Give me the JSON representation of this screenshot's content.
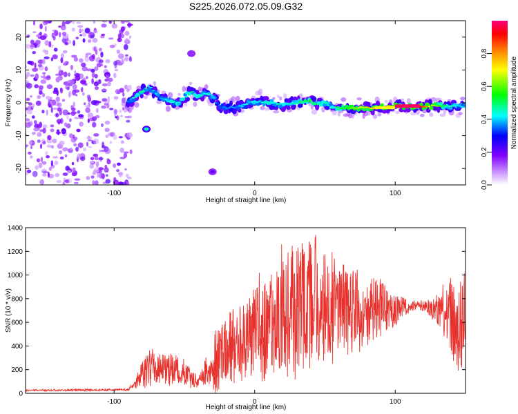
{
  "title": "S225.2026.072.05.09.G32",
  "chart_data": [
    {
      "type": "heatmap",
      "name": "spectrogram",
      "xlabel": "Height of straight line (km)",
      "ylabel": "Frequency (Hz)",
      "xlim": [
        -163,
        150
      ],
      "ylim": [
        -25,
        25
      ],
      "xticks": [
        -100,
        0,
        100
      ],
      "yticks": [
        -20,
        -10,
        0,
        10,
        20
      ],
      "colorbar": {
        "label": "Normalized spectral amplitude",
        "ticks": [
          0.0,
          0.2,
          0.4,
          0.6,
          0.8
        ],
        "range": [
          0,
          1
        ],
        "stops": [
          "#ffffff",
          "#8000ff",
          "#0000ff",
          "#00ffff",
          "#00ff00",
          "#ffff00",
          "#ff8000",
          "#ff0000",
          "#ff0080"
        ]
      },
      "noise_region_x": [
        -163,
        -90
      ],
      "ridge": {
        "x": [
          -90,
          -85,
          -80,
          -75,
          -70,
          -65,
          -60,
          -55,
          -50,
          -45,
          -40,
          -35,
          -30,
          -25,
          -20,
          -10,
          0,
          10,
          20,
          30,
          40,
          45,
          50,
          55,
          60,
          70,
          80,
          90,
          100,
          110,
          120,
          130,
          140,
          150
        ],
        "freq": [
          0.5,
          1.5,
          3.5,
          5,
          2.5,
          1,
          0.5,
          0,
          1.5,
          3.5,
          1.5,
          3,
          2,
          -1,
          -1.5,
          -1,
          0.5,
          0,
          -0.5,
          0,
          0.5,
          -0.5,
          0,
          -1.5,
          -1.5,
          -1.5,
          -1.5,
          -1.5,
          -1,
          -1,
          -1,
          -1,
          -1,
          -1
        ],
        "amplitude": [
          0.35,
          0.45,
          0.5,
          0.45,
          0.4,
          0.4,
          0.45,
          0.45,
          0.45,
          0.5,
          0.45,
          0.45,
          0.4,
          0.35,
          0.35,
          0.4,
          0.45,
          0.45,
          0.45,
          0.5,
          0.55,
          0.5,
          0.45,
          0.45,
          0.55,
          0.65,
          0.75,
          0.7,
          0.85,
          1.0,
          0.9,
          0.6,
          0.45,
          0.4
        ]
      },
      "blobs": [
        {
          "x": -77,
          "freq": -8,
          "amp": 0.45
        },
        {
          "x": -30,
          "freq": -21,
          "amp": 0.2
        },
        {
          "x": -45,
          "freq": 15,
          "amp": 0.15
        }
      ]
    },
    {
      "type": "line",
      "name": "snr",
      "xlabel": "Height of straight line (km)",
      "ylabel": "SNR (10 * v/v)",
      "xlim": [
        -163,
        150
      ],
      "ylim": [
        0,
        1400
      ],
      "xticks": [
        -100,
        0,
        100
      ],
      "yticks": [
        0,
        200,
        400,
        600,
        800,
        1000,
        1200,
        1400
      ],
      "series": [
        {
          "name": "SNR",
          "color": "#e8322d",
          "envelope_x": [
            -163,
            -90,
            -85,
            -80,
            -75,
            -70,
            -65,
            -60,
            -55,
            -50,
            -45,
            -40,
            -35,
            -30,
            -27,
            -25,
            -20,
            -15,
            -10,
            -5,
            0,
            5,
            10,
            15,
            20,
            25,
            30,
            35,
            40,
            45,
            50,
            55,
            60,
            65,
            70,
            75,
            80,
            85,
            90,
            95,
            100,
            105,
            110,
            115,
            120,
            125,
            130,
            135,
            140,
            145,
            150
          ],
          "envelope_mean": [
            25,
            30,
            80,
            160,
            200,
            220,
            200,
            200,
            190,
            170,
            120,
            100,
            180,
            160,
            350,
            300,
            350,
            420,
            480,
            500,
            550,
            580,
            600,
            650,
            700,
            700,
            700,
            700,
            750,
            720,
            700,
            700,
            700,
            720,
            700,
            700,
            700,
            720,
            700,
            700,
            700,
            720,
            740,
            740,
            740,
            720,
            720,
            700,
            650,
            600,
            700
          ],
          "envelope_amp": [
            8,
            10,
            40,
            120,
            170,
            170,
            150,
            140,
            130,
            120,
            80,
            60,
            130,
            130,
            450,
            250,
            300,
            350,
            380,
            400,
            450,
            480,
            500,
            550,
            580,
            600,
            620,
            620,
            650,
            600,
            550,
            500,
            450,
            420,
            380,
            350,
            330,
            300,
            260,
            200,
            150,
            100,
            60,
            40,
            50,
            80,
            150,
            250,
            350,
            450,
            400
          ]
        }
      ]
    }
  ]
}
